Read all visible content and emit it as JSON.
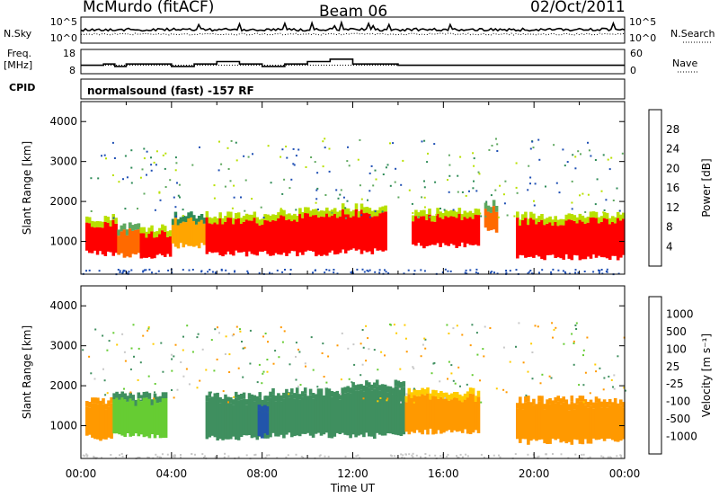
{
  "header": {
    "station": "McMurdo (fitACF)",
    "beam": "Beam 06",
    "date": "02/Oct/2011",
    "cpid_label": "CPID",
    "mode_text": "normalsound (fast) -157 RF"
  },
  "left_labels": {
    "nsky": "N.Sky",
    "freq_line1": "Freq.",
    "freq_line2": "[MHz]"
  },
  "right_labels": {
    "nsearch": "N.Search",
    "nave": "Nave"
  },
  "colors": {
    "power_scale": [
      "#1a1aff",
      "#1f4fb4",
      "#2e8b57",
      "#5fa85f",
      "#b8e000",
      "#ffa500",
      "#ff6a00",
      "#ff0000"
    ],
    "velocity_scale": [
      "#ff0000",
      "#ff5500",
      "#ff9900",
      "#ffcc00",
      "#c8c8c8",
      "#66cc33",
      "#3f8f5f",
      "#2255aa",
      "#1a1acc"
    ]
  },
  "chart_data": [
    {
      "type": "line",
      "name": "noise",
      "ylabel": "N.Sky",
      "right_label": "N.Search",
      "yticks_left": [
        "10^5",
        "10^0"
      ],
      "yticks_right": [
        "10^5",
        "10^0"
      ]
    },
    {
      "type": "line",
      "name": "frequency",
      "ylabel": "Freq. [MHz]",
      "right_label": "Nave",
      "yticks_left": [
        18,
        8
      ],
      "yticks_right": [
        60,
        0
      ],
      "freq_steps": [
        {
          "x": 0,
          "y": 11.5
        },
        {
          "x": 1,
          "y": 12
        },
        {
          "x": 1.5,
          "y": 11
        },
        {
          "x": 2,
          "y": 12
        },
        {
          "x": 3,
          "y": 12
        },
        {
          "x": 4,
          "y": 11
        },
        {
          "x": 5,
          "y": 12
        },
        {
          "x": 6,
          "y": 13
        },
        {
          "x": 7,
          "y": 12
        },
        {
          "x": 8,
          "y": 11
        },
        {
          "x": 9,
          "y": 12
        },
        {
          "x": 10,
          "y": 13
        },
        {
          "x": 11,
          "y": 14
        },
        {
          "x": 12,
          "y": 12
        },
        {
          "x": 13,
          "y": 12
        },
        {
          "x": 14,
          "y": 11.5
        },
        {
          "x": 16,
          "y": 11.5
        },
        {
          "x": 18,
          "y": 11.5
        },
        {
          "x": 20,
          "y": 11.5
        },
        {
          "x": 22,
          "y": 11.5
        },
        {
          "x": 24,
          "y": 11.5
        }
      ]
    },
    {
      "type": "heatmap",
      "name": "power",
      "ylabel": "Slant Range [km]",
      "yticks": [
        1000,
        2000,
        3000,
        4000
      ],
      "ylim": [
        180,
        4500
      ],
      "colorbar_label": "Power [dB]",
      "colorbar_ticks": [
        4,
        8,
        12,
        16,
        20,
        24,
        28
      ],
      "blocks": [
        {
          "t0": 0.2,
          "t1": 1.6,
          "r0": 700,
          "r1": 1450,
          "level": 7
        },
        {
          "t0": 1.6,
          "t1": 2.6,
          "r0": 650,
          "r1": 1250,
          "level": 6
        },
        {
          "t0": 2.6,
          "t1": 4.0,
          "r0": 650,
          "r1": 1200,
          "level": 7
        },
        {
          "t0": 4.0,
          "t1": 5.5,
          "r0": 900,
          "r1": 1500,
          "level": 5
        },
        {
          "t0": 5.5,
          "t1": 8.3,
          "r0": 700,
          "r1": 1500,
          "level": 7
        },
        {
          "t0": 8.3,
          "t1": 11.5,
          "r0": 700,
          "r1": 1600,
          "level": 7
        },
        {
          "t0": 11.5,
          "t1": 13.5,
          "r0": 750,
          "r1": 1700,
          "level": 7
        },
        {
          "t0": 14.6,
          "t1": 17.6,
          "r0": 900,
          "r1": 1600,
          "level": 7
        },
        {
          "t0": 17.8,
          "t1": 18.4,
          "r0": 1300,
          "r1": 1800,
          "level": 6
        },
        {
          "t0": 19.2,
          "t1": 24.0,
          "r0": 600,
          "r1": 1500,
          "level": 7
        }
      ]
    },
    {
      "type": "heatmap",
      "name": "velocity",
      "ylabel": "Slant Range [km]",
      "yticks": [
        1000,
        2000,
        3000,
        4000
      ],
      "ylim": [
        180,
        4500
      ],
      "colorbar_label": "Velocity [m s⁻¹]",
      "colorbar_ticks": [
        1000,
        500,
        100,
        25,
        -25,
        -100,
        -500,
        -1000
      ],
      "blocks": [
        {
          "t0": 0.2,
          "t1": 1.4,
          "r0": 700,
          "r1": 1450,
          "vel": -300
        },
        {
          "t0": 1.4,
          "t1": 3.8,
          "r0": 750,
          "r1": 1600,
          "vel": 50
        },
        {
          "t0": 5.5,
          "t1": 8.3,
          "r0": 700,
          "r1": 1600,
          "vel": 350
        },
        {
          "t0": 7.8,
          "t1": 8.3,
          "r0": 750,
          "r1": 1300,
          "vel": 900
        },
        {
          "t0": 8.3,
          "t1": 11.6,
          "r0": 750,
          "r1": 1700,
          "vel": 300
        },
        {
          "t0": 11.6,
          "t1": 14.3,
          "r0": 750,
          "r1": 1900,
          "vel": 400
        },
        {
          "t0": 14.3,
          "t1": 17.6,
          "r0": 850,
          "r1": 1700,
          "vel": -150
        },
        {
          "t0": 19.2,
          "t1": 24.0,
          "r0": 600,
          "r1": 1500,
          "vel": -200
        }
      ]
    }
  ],
  "x_axis": {
    "ticks": [
      "00:00",
      "04:00",
      "08:00",
      "12:00",
      "16:00",
      "20:00",
      "00:00"
    ],
    "label": "Time UT"
  }
}
